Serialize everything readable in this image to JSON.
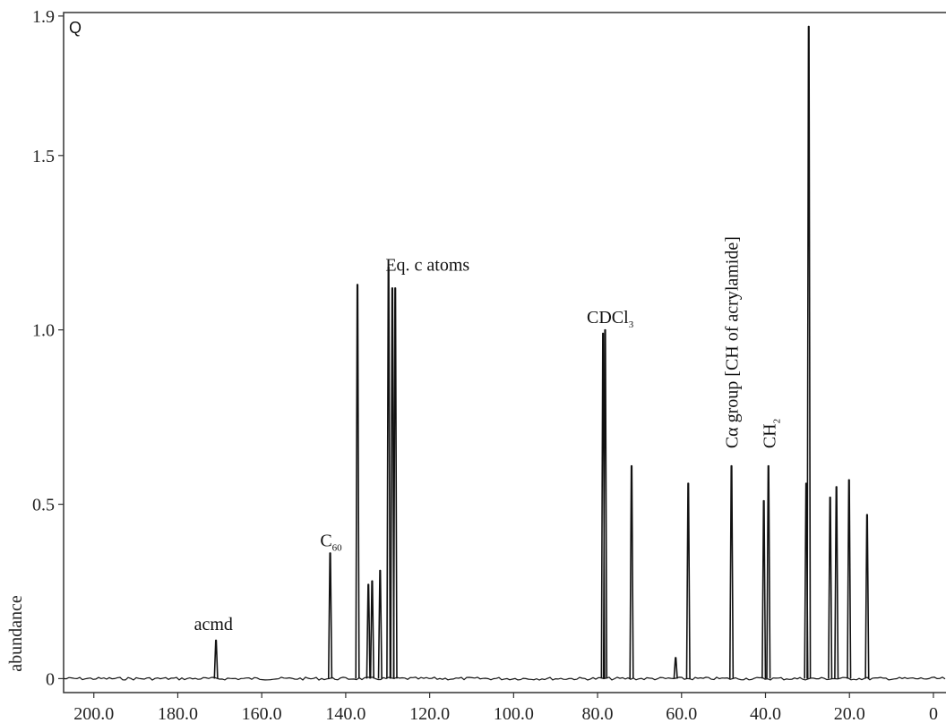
{
  "chart_data": {
    "type": "line",
    "panel_label": "Q",
    "xlabel": "",
    "ylabel": "abundance",
    "x_reversed": true,
    "xlim": [
      207.2,
      -3.0
    ],
    "ylim": [
      -0.04,
      1.91
    ],
    "x_ticks": [
      200,
      180,
      160,
      140,
      120,
      100,
      80,
      60,
      40,
      20,
      0
    ],
    "x_tick_labels": [
      "200.0",
      "180.0",
      "160.0",
      "140.0",
      "120.0",
      "100.0",
      "80.0",
      "60.0",
      "40.0",
      "20.0",
      "0"
    ],
    "y_ticks": [
      0,
      0.5,
      1.0,
      1.5,
      1.9
    ],
    "y_tick_labels": [
      "0",
      "0.5",
      "1.0",
      "1.5",
      "1.9"
    ],
    "grid": false,
    "line_color": "#111111",
    "series": [
      {
        "name": "",
        "peaks": [
          {
            "x": 170.9,
            "y": 0.11
          },
          {
            "x": 143.7,
            "y": 0.36
          },
          {
            "x": 137.2,
            "y": 1.13
          },
          {
            "x": 134.6,
            "y": 0.27
          },
          {
            "x": 133.7,
            "y": 0.28
          },
          {
            "x": 131.8,
            "y": 0.31
          },
          {
            "x": 129.8,
            "y": 1.18
          },
          {
            "x": 128.9,
            "y": 1.12
          },
          {
            "x": 128.2,
            "y": 1.12
          },
          {
            "x": 78.7,
            "y": 0.99
          },
          {
            "x": 78.2,
            "y": 1.0
          },
          {
            "x": 71.9,
            "y": 0.61
          },
          {
            "x": 61.4,
            "y": 0.06
          },
          {
            "x": 58.4,
            "y": 0.56
          },
          {
            "x": 48.1,
            "y": 0.61
          },
          {
            "x": 40.4,
            "y": 0.51
          },
          {
            "x": 39.3,
            "y": 0.61
          },
          {
            "x": 30.3,
            "y": 0.56
          },
          {
            "x": 29.7,
            "y": 1.87
          },
          {
            "x": 24.6,
            "y": 0.52
          },
          {
            "x": 23.1,
            "y": 0.55
          },
          {
            "x": 20.1,
            "y": 0.57
          },
          {
            "x": 15.8,
            "y": 0.47
          }
        ]
      }
    ],
    "annotations": [
      {
        "text": "acmd",
        "sub": "",
        "x": 171.5,
        "y": 0.14,
        "rotate": false
      },
      {
        "text": "C",
        "sub": "60",
        "x": 143.5,
        "y": 0.38,
        "rotate": false
      },
      {
        "text": "Eq. c atoms",
        "sub": "",
        "x": 120.5,
        "y": 1.17,
        "rotate": false
      },
      {
        "text": "CDCl",
        "sub": "3",
        "x": 77.0,
        "y": 1.02,
        "rotate": false
      },
      {
        "text": "Cα group [CH of acrylamide]",
        "sub": "",
        "x": 48.1,
        "y": 0.66,
        "rotate": true
      },
      {
        "text": "CH",
        "sub": "2",
        "x": 39.2,
        "y": 0.66,
        "rotate": true
      }
    ]
  }
}
